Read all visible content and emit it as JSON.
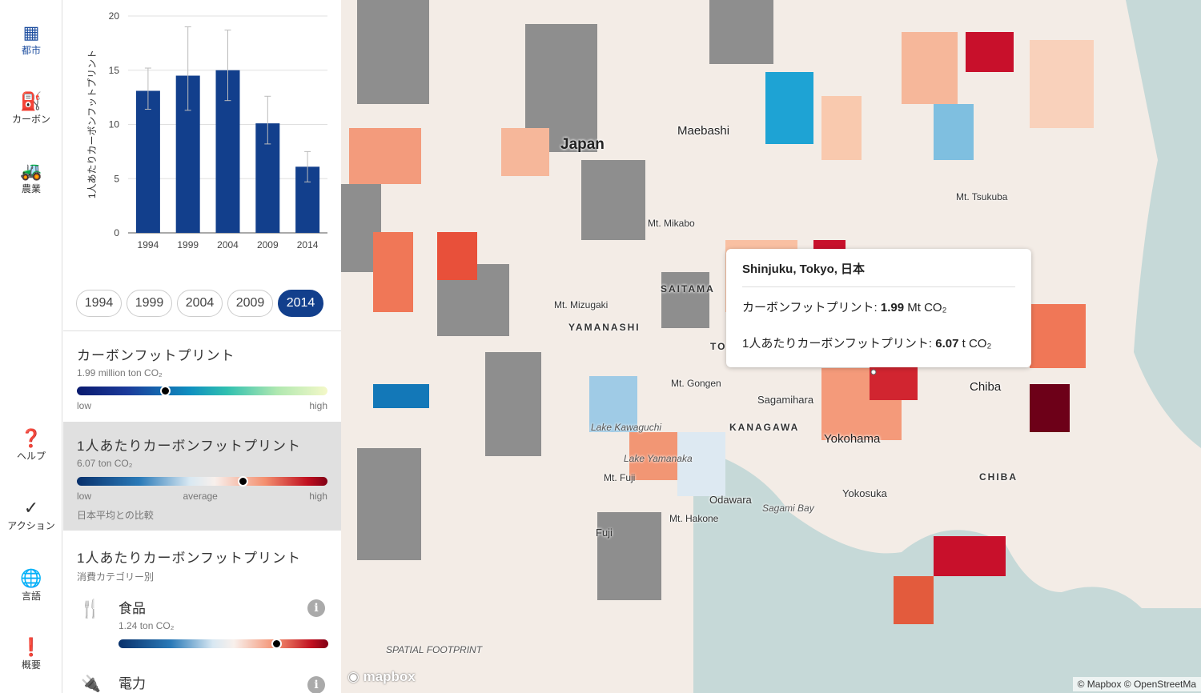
{
  "nav": [
    {
      "label": "都市",
      "icon": "city-icon"
    },
    {
      "label": "カーボン",
      "icon": "fuel-pump-icon"
    },
    {
      "label": "農業",
      "icon": "tractor-icon"
    },
    {
      "label": "ヘルプ",
      "icon": "help-icon"
    },
    {
      "label": "アクション",
      "icon": "check-icon"
    },
    {
      "label": "言語",
      "icon": "globe-icon"
    },
    {
      "label": "概要",
      "icon": "alert-icon"
    }
  ],
  "chart_data": {
    "type": "bar",
    "categories": [
      "1994",
      "1999",
      "2004",
      "2009",
      "2014"
    ],
    "values": [
      13.1,
      14.5,
      15.0,
      10.1,
      6.1
    ],
    "error_low": [
      11.4,
      11.3,
      12.2,
      8.2,
      4.7
    ],
    "error_high": [
      15.2,
      19.0,
      18.7,
      12.6,
      7.5
    ],
    "ylabel": "1人あたりカーボンフットプリント",
    "ylim": [
      0,
      20
    ],
    "yticks": [
      "0",
      "5",
      "10",
      "15",
      "20"
    ],
    "color": "#123f8c"
  },
  "years": [
    "1994",
    "1999",
    "2004",
    "2009",
    "2014"
  ],
  "selected_year": "2014",
  "footprint": {
    "title": "カーボンフットプリント",
    "value": "1.99 million ton CO₂",
    "low": "low",
    "high": "high",
    "position": 0.35
  },
  "per_capita": {
    "title": "1人あたりカーボンフットプリント",
    "value": "6.07 ton CO₂",
    "low": "low",
    "average": "average",
    "high": "high",
    "note": "日本平均との比較",
    "position": 0.66
  },
  "categories": {
    "title": "1人あたりカーボンフットプリント",
    "subtitle": "消費カテゴリー別",
    "items": [
      {
        "name": "食品",
        "value": "1.24 ton CO₂",
        "position": 0.75,
        "icon": "fork-knife-icon"
      },
      {
        "name": "電力",
        "icon": "plug-icon"
      }
    ]
  },
  "tooltip": {
    "title": "Shinjuku, Tokyo, 日本",
    "line1_label": "カーボンフットプリント: ",
    "line1_value": "1.99",
    "line1_unit": " Mt CO₂",
    "line2_label": "1人あたりカーボンフットプリント: ",
    "line2_value": "6.07",
    "line2_unit": " t CO₂"
  },
  "map_labels": [
    "Japan",
    "Maebashi",
    "Mt. Tsukuba",
    "Mt. Mikabo",
    "SAITAMA",
    "Mt. Mizugaki",
    "YAMANASHI",
    "TO",
    "Mt. Gongen",
    "Sagamihara",
    "Chiba",
    "Lake Kawaguchi",
    "KANAGAWA",
    "Yokohama",
    "Lake Yamanaka",
    "Mt. Fuji",
    "CHIBA",
    "Odawara",
    "Sagami Bay",
    "Yokosuka",
    "Mt. Hakone",
    "Fuji"
  ],
  "brand": "SPATIAL FOOTPRINT",
  "mapbox": "mapbox",
  "attribution": "© Mapbox © OpenStreetMa"
}
